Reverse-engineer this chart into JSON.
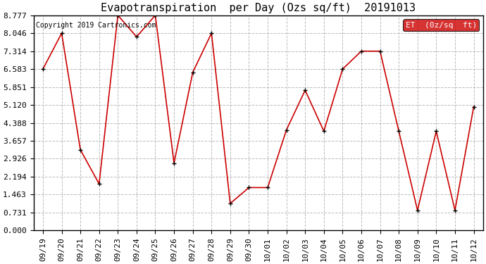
{
  "title": "Evapotranspiration  per Day (Ozs sq/ft)  20191013",
  "copyright": "Copyright 2019 Cartronics.com",
  "legend_label": "ET  (0z/sq  ft)",
  "x_labels": [
    "09/19",
    "09/20",
    "09/21",
    "09/22",
    "09/23",
    "09/24",
    "09/25",
    "09/26",
    "09/27",
    "09/28",
    "09/29",
    "09/30",
    "10/01",
    "10/02",
    "10/03",
    "10/04",
    "10/05",
    "10/06",
    "10/07",
    "10/08",
    "10/09",
    "10/10",
    "10/11",
    "10/12"
  ],
  "y_values": [
    6.583,
    8.046,
    3.29,
    1.9,
    8.777,
    7.9,
    8.777,
    2.75,
    6.45,
    8.046,
    1.1,
    1.75,
    1.75,
    4.1,
    5.72,
    4.05,
    6.583,
    7.314,
    7.314,
    4.05,
    0.82,
    4.05,
    0.82,
    5.05
  ],
  "y_ticks": [
    0.0,
    0.731,
    1.463,
    2.194,
    2.926,
    3.657,
    4.388,
    5.12,
    5.851,
    6.583,
    7.314,
    8.046,
    8.777
  ],
  "y_min": 0.0,
  "y_max": 8.777,
  "line_color": "#cc0000",
  "marker_color": "#000000",
  "bg_color": "#ffffff",
  "grid_color": "#aaaaaa",
  "legend_bg": "#cc0000",
  "legend_text_color": "#ffffff",
  "title_fontsize": 11,
  "copyright_fontsize": 7,
  "tick_fontsize": 8,
  "legend_fontsize": 8
}
